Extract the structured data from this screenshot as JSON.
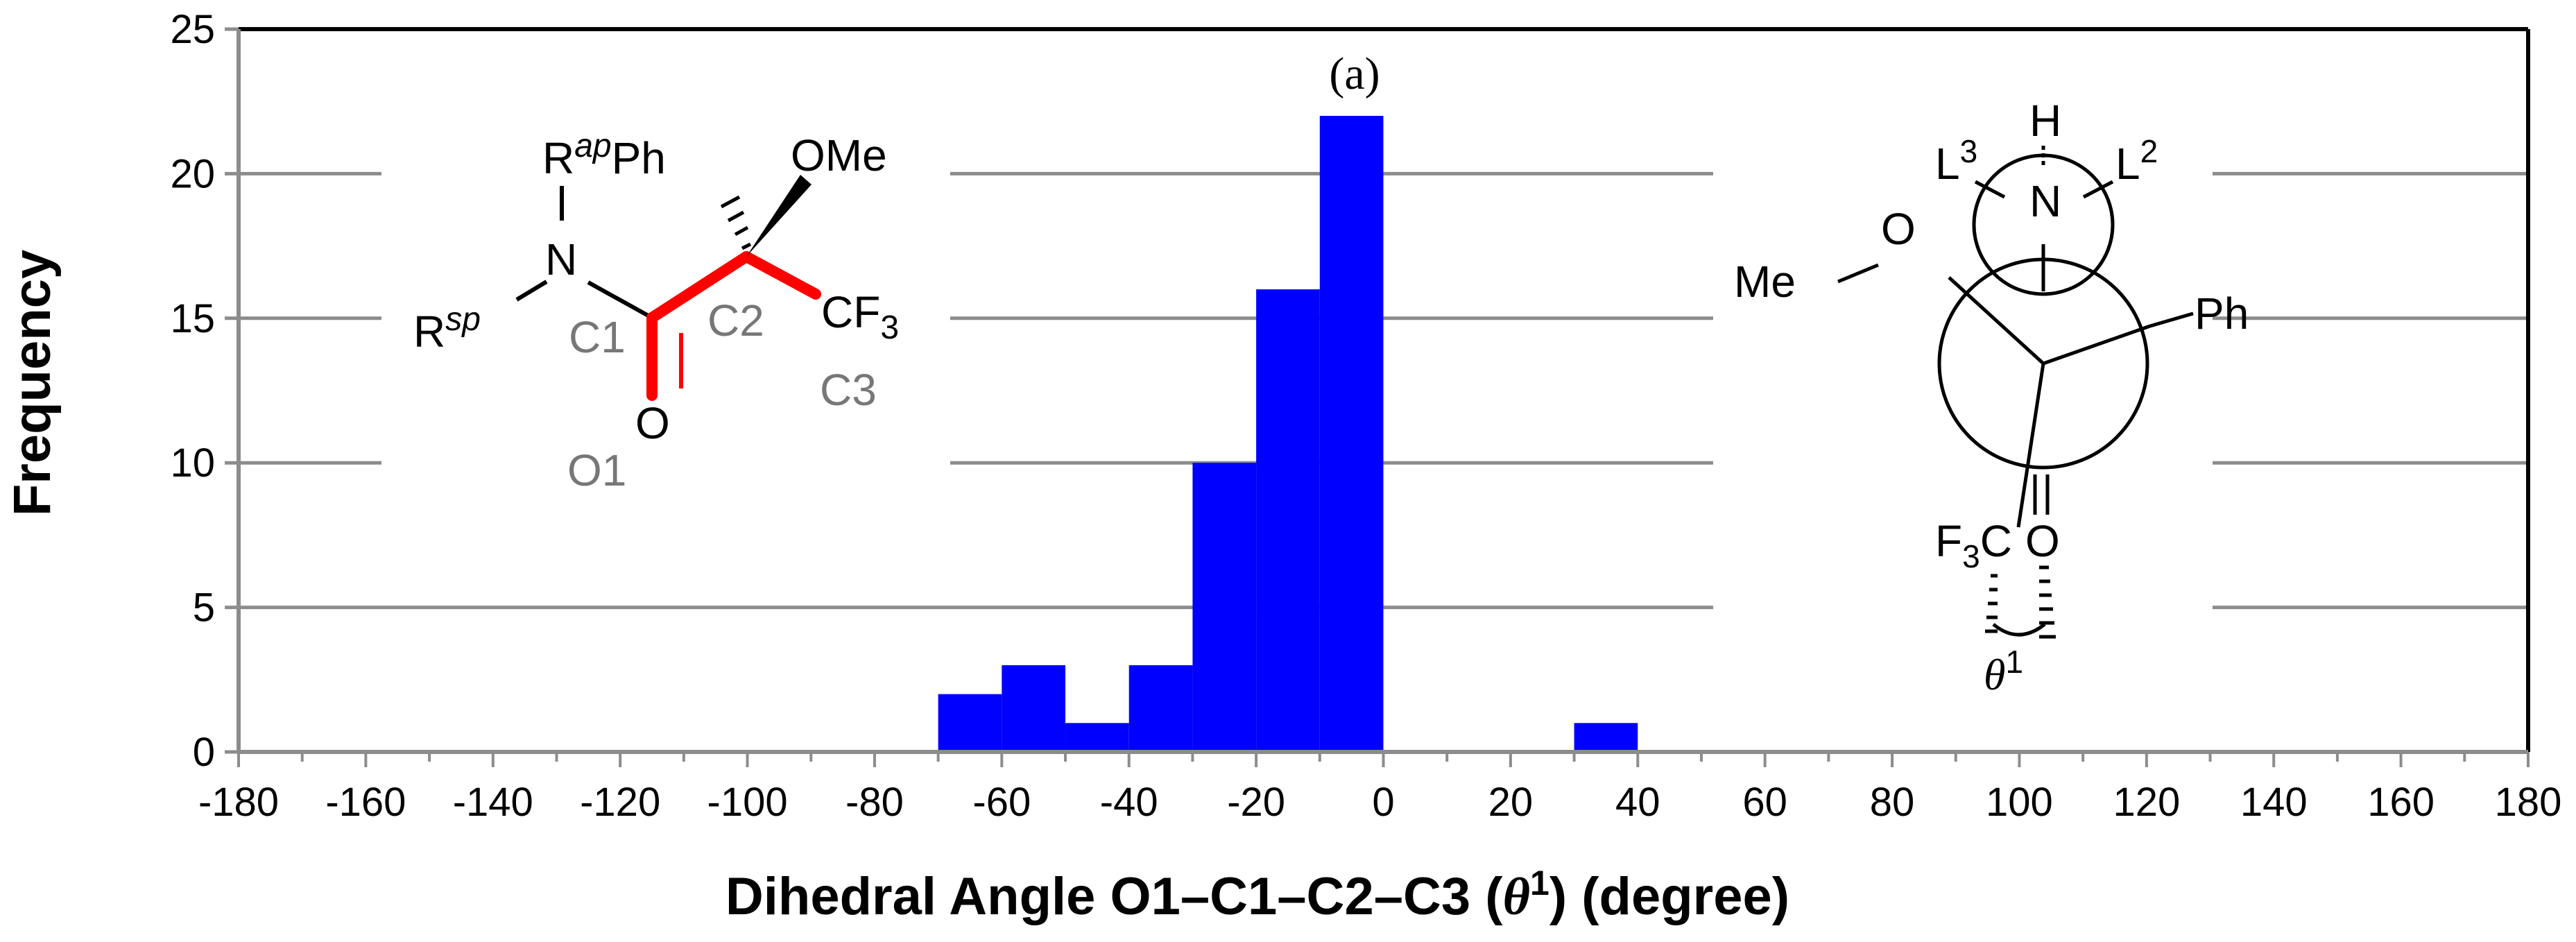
{
  "chart_data": {
    "type": "bar",
    "bin_width": 10,
    "bins": [
      {
        "start": -70,
        "end": -60,
        "count": 2
      },
      {
        "start": -60,
        "end": -50,
        "count": 3
      },
      {
        "start": -50,
        "end": -40,
        "count": 1
      },
      {
        "start": -40,
        "end": -30,
        "count": 3
      },
      {
        "start": -30,
        "end": -20,
        "count": 10
      },
      {
        "start": -20,
        "end": -10,
        "count": 16
      },
      {
        "start": -10,
        "end": 0,
        "count": 22
      },
      {
        "start": 30,
        "end": 40,
        "count": 1
      }
    ],
    "xlim": [
      -180,
      180
    ],
    "ylim": [
      0,
      25
    ],
    "xticks": [
      -180,
      -160,
      -140,
      -120,
      -100,
      -80,
      -60,
      -40,
      -20,
      0,
      20,
      40,
      60,
      80,
      100,
      120,
      140,
      160,
      180
    ],
    "yticks": [
      0,
      5,
      10,
      15,
      20,
      25
    ],
    "xlabel": {
      "main": "Dihedral Angle O1–C1–C2–C3 (",
      "theta": "θ",
      "sup": "1",
      "tail": ") (degree)"
    },
    "ylabel": "Frequency",
    "panel_label": "(a)",
    "grid": true,
    "bar_color": "#0000ff"
  },
  "structure_left": {
    "rap": "R",
    "rap_sup": "ap",
    "ph": "Ph",
    "ome": "OMe",
    "n": "N",
    "rsp": "R",
    "rsp_sup": "sp",
    "c1": "C1",
    "c2": "C2",
    "cf": "CF",
    "cf_sub": "3",
    "c3": "C3",
    "o": "O",
    "o1": "O1",
    "highlight_color": "#ff0000"
  },
  "structure_right": {
    "h": "H",
    "n": "N",
    "l3": "L",
    "l3_sup": "3",
    "l2": "L",
    "l2_sup": "2",
    "o": "O",
    "me": "Me",
    "ph": "Ph",
    "f3c_f": "F",
    "f3c_sub": "3",
    "f3c_c": "C",
    "o_carbonyl": "O",
    "theta": "θ",
    "theta_sup": "1"
  }
}
